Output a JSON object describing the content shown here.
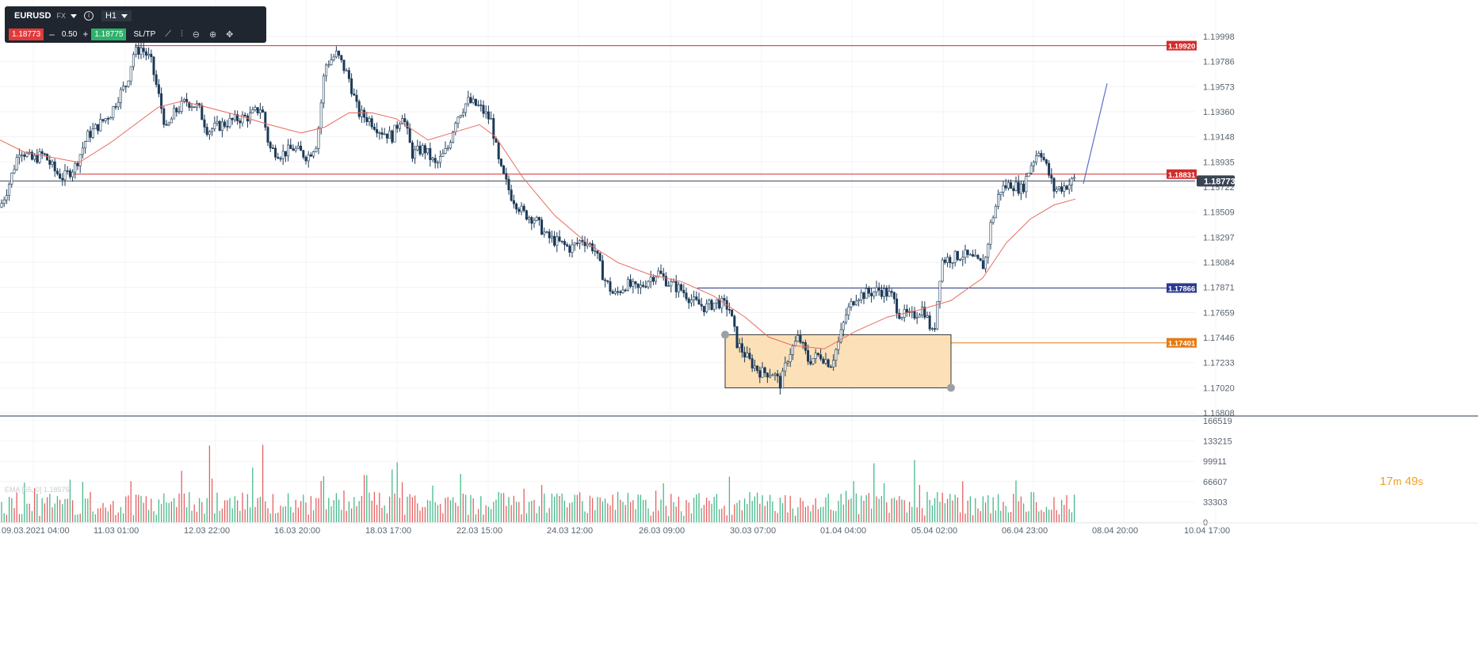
{
  "toolbar": {
    "symbol": "EURUSD",
    "market": "FX",
    "timeframe": "H1",
    "sell_price": "1.18773",
    "volume": "0.50",
    "buy_price": "1.18775",
    "sltp_label": "SL/TP",
    "minus": "–",
    "plus": "+",
    "info": "i",
    "icons": [
      "line-icon",
      "indicators-icon",
      "zoom-out-icon",
      "zoom-in-icon",
      "move-icon"
    ]
  },
  "indicator_label": "EMA [55, 0] 1.18575",
  "countdown": {
    "minutes": "17",
    "m": "m",
    "seconds": "49",
    "s": "s"
  },
  "colors": {
    "up": "#1c3a57",
    "down": "#1c3a57",
    "ema": "#e86b5e",
    "vol_up": "#46b98a",
    "vol_down": "#e56060",
    "res": "#d42b2b",
    "blue": "#2a3a8f",
    "orange": "#e57a10",
    "box": "#fbe0b8"
  },
  "chart_data": {
    "type": "candlestick",
    "timeframe": "H1",
    "price_axis_ticks": [
      "1.19998",
      "1.19786",
      "1.19573",
      "1.19360",
      "1.19148",
      "1.18935",
      "1.18722",
      "1.18509",
      "1.18297",
      "1.18084",
      "1.17871",
      "1.17659",
      "1.17446",
      "1.17233",
      "1.17020",
      "1.16808"
    ],
    "volume_axis_ticks": [
      "166519",
      "133215",
      "99911",
      "66607",
      "33303",
      "0"
    ],
    "time_axis_labels": [
      "09.03.2021 04:00",
      "11.03 01:00",
      "12.03 22:00",
      "16.03 20:00",
      "18.03 17:00",
      "22.03 15:00",
      "24.03 12:00",
      "26.03 09:00",
      "30.03 07:00",
      "01.04 04:00",
      "05.04 02:00",
      "06.04 23:00",
      "08.04 20:00",
      "10.04 17:00"
    ],
    "price_path": [
      [
        0,
        1.1855
      ],
      [
        10,
        1.1872
      ],
      [
        25,
        1.1905
      ],
      [
        40,
        1.1895
      ],
      [
        55,
        1.19
      ],
      [
        70,
        1.1885
      ],
      [
        80,
        1.188
      ],
      [
        95,
        1.189
      ],
      [
        110,
        1.1915
      ],
      [
        125,
        1.1925
      ],
      [
        140,
        1.1935
      ],
      [
        150,
        1.195
      ],
      [
        160,
        1.196
      ],
      [
        168,
        1.1985
      ],
      [
        178,
        1.199
      ],
      [
        190,
        1.198
      ],
      [
        200,
        1.195
      ],
      [
        210,
        1.192
      ],
      [
        220,
        1.1935
      ],
      [
        235,
        1.1945
      ],
      [
        250,
        1.194
      ],
      [
        262,
        1.192
      ],
      [
        280,
        1.1925
      ],
      [
        300,
        1.193
      ],
      [
        315,
        1.1932
      ],
      [
        330,
        1.194
      ],
      [
        340,
        1.1905
      ],
      [
        355,
        1.19
      ],
      [
        370,
        1.1905
      ],
      [
        388,
        1.1898
      ],
      [
        400,
        1.191
      ],
      [
        410,
        1.1975
      ],
      [
        425,
        1.1985
      ],
      [
        440,
        1.1965
      ],
      [
        452,
        1.1935
      ],
      [
        465,
        1.193
      ],
      [
        480,
        1.192
      ],
      [
        495,
        1.1915
      ],
      [
        508,
        1.1935
      ],
      [
        520,
        1.19
      ],
      [
        535,
        1.1905
      ],
      [
        550,
        1.189
      ],
      [
        565,
        1.1905
      ],
      [
        575,
        1.193
      ],
      [
        590,
        1.1945
      ],
      [
        605,
        1.194
      ],
      [
        620,
        1.1928
      ],
      [
        630,
        1.189
      ],
      [
        645,
        1.1865
      ],
      [
        660,
        1.185
      ],
      [
        675,
        1.1845
      ],
      [
        690,
        1.183
      ],
      [
        705,
        1.1825
      ],
      [
        720,
        1.182
      ],
      [
        735,
        1.1828
      ],
      [
        750,
        1.182
      ],
      [
        762,
        1.1795
      ],
      [
        775,
        1.178
      ],
      [
        790,
        1.179
      ],
      [
        805,
        1.1785
      ],
      [
        820,
        1.1795
      ],
      [
        830,
        1.18
      ],
      [
        845,
        1.179
      ],
      [
        860,
        1.1785
      ],
      [
        875,
        1.1775
      ],
      [
        890,
        1.177
      ],
      [
        905,
        1.1775
      ],
      [
        920,
        1.177
      ],
      [
        930,
        1.174
      ],
      [
        945,
        1.1725
      ],
      [
        960,
        1.1715
      ],
      [
        975,
        1.1715
      ],
      [
        985,
        1.1705
      ],
      [
        995,
        1.173
      ],
      [
        1008,
        1.1745
      ],
      [
        1020,
        1.1725
      ],
      [
        1035,
        1.173
      ],
      [
        1048,
        1.1722
      ],
      [
        1058,
        1.174
      ],
      [
        1068,
        1.1765
      ],
      [
        1080,
        1.178
      ],
      [
        1095,
        1.1782
      ],
      [
        1110,
        1.1785
      ],
      [
        1125,
        1.178
      ],
      [
        1135,
        1.1765
      ],
      [
        1150,
        1.1762
      ],
      [
        1165,
        1.177
      ],
      [
        1178,
        1.1745
      ],
      [
        1188,
        1.181
      ],
      [
        1200,
        1.1812
      ],
      [
        1215,
        1.1815
      ],
      [
        1230,
        1.181
      ],
      [
        1242,
        1.1805
      ],
      [
        1250,
        1.184
      ],
      [
        1262,
        1.187
      ],
      [
        1275,
        1.1875
      ],
      [
        1290,
        1.187
      ],
      [
        1300,
        1.189
      ],
      [
        1312,
        1.1905
      ],
      [
        1320,
        1.189
      ],
      [
        1330,
        1.187
      ],
      [
        1340,
        1.1872
      ],
      [
        1350,
        1.1875
      ],
      [
        1357,
        1.188
      ]
    ],
    "ema_path": [
      [
        0,
        1.1912
      ],
      [
        30,
        1.1902
      ],
      [
        60,
        1.1898
      ],
      [
        100,
        1.1893
      ],
      [
        140,
        1.191
      ],
      [
        170,
        1.1925
      ],
      [
        200,
        1.194
      ],
      [
        230,
        1.1945
      ],
      [
        260,
        1.194
      ],
      [
        300,
        1.1933
      ],
      [
        340,
        1.1925
      ],
      [
        380,
        1.1918
      ],
      [
        410,
        1.1923
      ],
      [
        440,
        1.1935
      ],
      [
        470,
        1.1935
      ],
      [
        500,
        1.193
      ],
      [
        540,
        1.1912
      ],
      [
        580,
        1.192
      ],
      [
        605,
        1.1925
      ],
      [
        625,
        1.1915
      ],
      [
        660,
        1.188
      ],
      [
        700,
        1.1848
      ],
      [
        740,
        1.1825
      ],
      [
        780,
        1.1808
      ],
      [
        820,
        1.1798
      ],
      [
        860,
        1.1792
      ],
      [
        900,
        1.178
      ],
      [
        940,
        1.1762
      ],
      [
        970,
        1.1745
      ],
      [
        1000,
        1.1738
      ],
      [
        1040,
        1.1735
      ],
      [
        1080,
        1.175
      ],
      [
        1120,
        1.1762
      ],
      [
        1160,
        1.1768
      ],
      [
        1200,
        1.1776
      ],
      [
        1240,
        1.1795
      ],
      [
        1270,
        1.1825
      ],
      [
        1300,
        1.1845
      ],
      [
        1330,
        1.1857
      ],
      [
        1357,
        1.1862
      ]
    ],
    "ylim": [
      1.16808,
      1.19998
    ],
    "horizontal_lines": [
      {
        "name": "resistance-high",
        "price": 1.1992,
        "label": "1.19920",
        "color": "#d42b2b",
        "from": 170
      },
      {
        "name": "resistance-mid",
        "price": 1.18831,
        "label": "1.18831",
        "color": "#d42b2b",
        "from": 90
      },
      {
        "name": "current-price",
        "price": 1.18773,
        "label": "1.18773",
        "color": "#3a4452",
        "from": 0
      },
      {
        "name": "level-blue",
        "price": 1.17866,
        "label": "1.17866",
        "color": "#2a3a8f",
        "from": 880
      },
      {
        "name": "level-orange",
        "price": 1.17401,
        "label": "1.17401",
        "color": "#e57a10",
        "from": 1180
      }
    ],
    "box": {
      "x0": 915,
      "x1": 1200,
      "price_top": 1.1747,
      "price_bottom": 1.1702
    },
    "trend_line": {
      "x0": 1367,
      "p0": 1.1875,
      "x1": 1397,
      "p1": 1.196
    }
  }
}
